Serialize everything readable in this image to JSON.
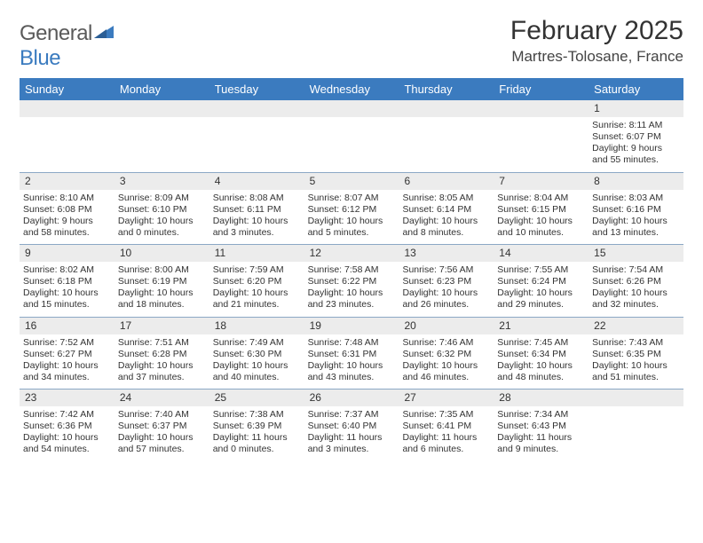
{
  "logo": {
    "text1": "General",
    "text2": "Blue",
    "color_gray": "#6a6a6a",
    "color_blue": "#3b7bbf"
  },
  "title": "February 2025",
  "subtitle": "Martres-Tolosane, France",
  "colors": {
    "header_bg": "#3b7bbf",
    "header_text": "#ffffff",
    "daynum_bg": "#ececec",
    "week_border": "#8ba8c5",
    "body_text": "#333333",
    "page_bg": "#ffffff"
  },
  "day_names": [
    "Sunday",
    "Monday",
    "Tuesday",
    "Wednesday",
    "Thursday",
    "Friday",
    "Saturday"
  ],
  "weeks": [
    [
      {
        "day": null
      },
      {
        "day": null
      },
      {
        "day": null
      },
      {
        "day": null
      },
      {
        "day": null
      },
      {
        "day": null
      },
      {
        "day": 1,
        "sunrise": "8:11 AM",
        "sunset": "6:07 PM",
        "daylight": "9 hours and 55 minutes."
      }
    ],
    [
      {
        "day": 2,
        "sunrise": "8:10 AM",
        "sunset": "6:08 PM",
        "daylight": "9 hours and 58 minutes."
      },
      {
        "day": 3,
        "sunrise": "8:09 AM",
        "sunset": "6:10 PM",
        "daylight": "10 hours and 0 minutes."
      },
      {
        "day": 4,
        "sunrise": "8:08 AM",
        "sunset": "6:11 PM",
        "daylight": "10 hours and 3 minutes."
      },
      {
        "day": 5,
        "sunrise": "8:07 AM",
        "sunset": "6:12 PM",
        "daylight": "10 hours and 5 minutes."
      },
      {
        "day": 6,
        "sunrise": "8:05 AM",
        "sunset": "6:14 PM",
        "daylight": "10 hours and 8 minutes."
      },
      {
        "day": 7,
        "sunrise": "8:04 AM",
        "sunset": "6:15 PM",
        "daylight": "10 hours and 10 minutes."
      },
      {
        "day": 8,
        "sunrise": "8:03 AM",
        "sunset": "6:16 PM",
        "daylight": "10 hours and 13 minutes."
      }
    ],
    [
      {
        "day": 9,
        "sunrise": "8:02 AM",
        "sunset": "6:18 PM",
        "daylight": "10 hours and 15 minutes."
      },
      {
        "day": 10,
        "sunrise": "8:00 AM",
        "sunset": "6:19 PM",
        "daylight": "10 hours and 18 minutes."
      },
      {
        "day": 11,
        "sunrise": "7:59 AM",
        "sunset": "6:20 PM",
        "daylight": "10 hours and 21 minutes."
      },
      {
        "day": 12,
        "sunrise": "7:58 AM",
        "sunset": "6:22 PM",
        "daylight": "10 hours and 23 minutes."
      },
      {
        "day": 13,
        "sunrise": "7:56 AM",
        "sunset": "6:23 PM",
        "daylight": "10 hours and 26 minutes."
      },
      {
        "day": 14,
        "sunrise": "7:55 AM",
        "sunset": "6:24 PM",
        "daylight": "10 hours and 29 minutes."
      },
      {
        "day": 15,
        "sunrise": "7:54 AM",
        "sunset": "6:26 PM",
        "daylight": "10 hours and 32 minutes."
      }
    ],
    [
      {
        "day": 16,
        "sunrise": "7:52 AM",
        "sunset": "6:27 PM",
        "daylight": "10 hours and 34 minutes."
      },
      {
        "day": 17,
        "sunrise": "7:51 AM",
        "sunset": "6:28 PM",
        "daylight": "10 hours and 37 minutes."
      },
      {
        "day": 18,
        "sunrise": "7:49 AM",
        "sunset": "6:30 PM",
        "daylight": "10 hours and 40 minutes."
      },
      {
        "day": 19,
        "sunrise": "7:48 AM",
        "sunset": "6:31 PM",
        "daylight": "10 hours and 43 minutes."
      },
      {
        "day": 20,
        "sunrise": "7:46 AM",
        "sunset": "6:32 PM",
        "daylight": "10 hours and 46 minutes."
      },
      {
        "day": 21,
        "sunrise": "7:45 AM",
        "sunset": "6:34 PM",
        "daylight": "10 hours and 48 minutes."
      },
      {
        "day": 22,
        "sunrise": "7:43 AM",
        "sunset": "6:35 PM",
        "daylight": "10 hours and 51 minutes."
      }
    ],
    [
      {
        "day": 23,
        "sunrise": "7:42 AM",
        "sunset": "6:36 PM",
        "daylight": "10 hours and 54 minutes."
      },
      {
        "day": 24,
        "sunrise": "7:40 AM",
        "sunset": "6:37 PM",
        "daylight": "10 hours and 57 minutes."
      },
      {
        "day": 25,
        "sunrise": "7:38 AM",
        "sunset": "6:39 PM",
        "daylight": "11 hours and 0 minutes."
      },
      {
        "day": 26,
        "sunrise": "7:37 AM",
        "sunset": "6:40 PM",
        "daylight": "11 hours and 3 minutes."
      },
      {
        "day": 27,
        "sunrise": "7:35 AM",
        "sunset": "6:41 PM",
        "daylight": "11 hours and 6 minutes."
      },
      {
        "day": 28,
        "sunrise": "7:34 AM",
        "sunset": "6:43 PM",
        "daylight": "11 hours and 9 minutes."
      },
      {
        "day": null
      }
    ]
  ],
  "labels": {
    "sunrise": "Sunrise:",
    "sunset": "Sunset:",
    "daylight": "Daylight:"
  }
}
